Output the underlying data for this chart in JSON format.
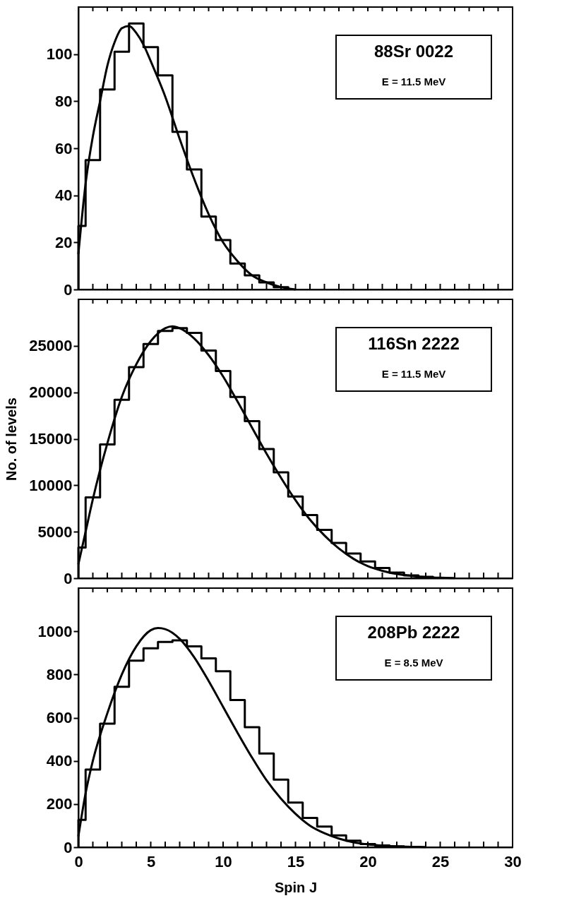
{
  "chart_data": [
    {
      "type": "histogram",
      "xlim": [
        0,
        30
      ],
      "ylim": [
        0,
        120
      ],
      "yticks": [
        0,
        20,
        40,
        60,
        80,
        100
      ],
      "tick_labels": "y",
      "xticks": [
        0,
        {
          "value": 1,
          "label": null
        },
        {
          "value": 2,
          "label": null
        },
        {
          "value": 3,
          "label": null
        },
        {
          "value": 4,
          "label": null
        },
        5,
        {
          "value": 6,
          "label": null
        },
        {
          "value": 7,
          "label": null
        },
        {
          "value": 8,
          "label": null
        },
        {
          "value": 9,
          "label": null
        },
        10,
        {
          "value": 11,
          "label": null
        },
        {
          "value": 12,
          "label": null
        },
        {
          "value": 13,
          "label": null
        },
        {
          "value": 14,
          "label": null
        },
        15,
        {
          "value": 16,
          "label": null
        },
        {
          "value": 17,
          "label": null
        },
        {
          "value": 18,
          "label": null
        },
        {
          "value": 19,
          "label": null
        },
        20,
        {
          "value": 21,
          "label": null
        },
        {
          "value": 22,
          "label": null
        },
        {
          "value": 23,
          "label": null
        },
        {
          "value": 24,
          "label": null
        },
        25,
        {
          "value": 26,
          "label": null
        },
        {
          "value": 27,
          "label": null
        },
        {
          "value": 28,
          "label": null
        },
        {
          "value": 29,
          "label": null
        },
        30
      ],
      "annotations": [
        "88Sr  0022",
        "E = 11.5 MeV"
      ],
      "series": [
        {
          "type": "histogram",
          "color": "#000000",
          "bins": [
            0,
            0.5,
            1.5,
            2.5,
            3.5,
            4.5,
            5.5,
            6.5,
            7.5,
            8.5,
            9.5,
            10.5,
            11.5,
            12.5,
            13.5,
            14.5
          ],
          "values": [
            27,
            55,
            85,
            101,
            113,
            103,
            91,
            67,
            51,
            31,
            21,
            11,
            6,
            3,
            1
          ]
        },
        {
          "type": "line",
          "color": "#000000",
          "x": [
            0,
            0.5,
            1,
            1.5,
            2,
            2.5,
            3,
            3.5,
            4,
            4.5,
            5,
            6,
            7,
            8,
            9,
            10,
            11,
            12,
            13,
            14,
            15
          ],
          "values": [
            15,
            45,
            65,
            80,
            95,
            105,
            111,
            112,
            109,
            104,
            97,
            82,
            64,
            47,
            32,
            20,
            12,
            6,
            3,
            1,
            0
          ]
        }
      ]
    },
    {
      "type": "histogram",
      "xlim": [
        0,
        30
      ],
      "ylim": [
        0,
        30000
      ],
      "yticks": [
        0,
        5000,
        10000,
        15000,
        20000,
        25000
      ],
      "tick_labels": "y",
      "ylabel": "No. of levels",
      "xticks": [
        0,
        {
          "value": 1,
          "label": null
        },
        {
          "value": 2,
          "label": null
        },
        {
          "value": 3,
          "label": null
        },
        {
          "value": 4,
          "label": null
        },
        5,
        {
          "value": 6,
          "label": null
        },
        {
          "value": 7,
          "label": null
        },
        {
          "value": 8,
          "label": null
        },
        {
          "value": 9,
          "label": null
        },
        10,
        {
          "value": 11,
          "label": null
        },
        {
          "value": 12,
          "label": null
        },
        {
          "value": 13,
          "label": null
        },
        {
          "value": 14,
          "label": null
        },
        15,
        {
          "value": 16,
          "label": null
        },
        {
          "value": 17,
          "label": null
        },
        {
          "value": 18,
          "label": null
        },
        {
          "value": 19,
          "label": null
        },
        20,
        {
          "value": 21,
          "label": null
        },
        {
          "value": 22,
          "label": null
        },
        {
          "value": 23,
          "label": null
        },
        {
          "value": 24,
          "label": null
        },
        25,
        {
          "value": 26,
          "label": null
        },
        {
          "value": 27,
          "label": null
        },
        {
          "value": 28,
          "label": null
        },
        {
          "value": 29,
          "label": null
        },
        30
      ],
      "annotations": [
        "116Sn  2222",
        "E = 11.5 MeV"
      ],
      "series": [
        {
          "type": "histogram",
          "color": "#000000",
          "bins": [
            0,
            0.5,
            1.5,
            2.5,
            3.5,
            4.5,
            5.5,
            6.5,
            7.5,
            8.5,
            9.5,
            10.5,
            11.5,
            12.5,
            13.5,
            14.5,
            15.5,
            16.5,
            17.5,
            18.5,
            19.5,
            20.5,
            21.5,
            22.5,
            23.5,
            24.5
          ],
          "values": [
            3300,
            8700,
            14400,
            19200,
            22700,
            25200,
            26600,
            26900,
            26400,
            24500,
            22300,
            19500,
            16900,
            13900,
            11400,
            8800,
            6800,
            5200,
            3800,
            2650,
            1800,
            1100,
            600,
            300,
            150
          ]
        },
        {
          "type": "line",
          "color": "#000000",
          "x": [
            0,
            0.5,
            1,
            2,
            3,
            4,
            5,
            6,
            6.5,
            7,
            8,
            9,
            10,
            11,
            12,
            13,
            14,
            15,
            16,
            17,
            18,
            19,
            20,
            21,
            22,
            23,
            24,
            25,
            26
          ],
          "values": [
            1500,
            5000,
            8500,
            14500,
            19500,
            23000,
            25500,
            26900,
            27100,
            26900,
            25800,
            24000,
            21700,
            19000,
            16200,
            13400,
            10800,
            8400,
            6300,
            4600,
            3200,
            2100,
            1300,
            800,
            450,
            250,
            120,
            50,
            20
          ]
        }
      ]
    },
    {
      "type": "histogram",
      "xlim": [
        0,
        30
      ],
      "ylim": [
        0,
        1200
      ],
      "yticks": [
        0,
        200,
        400,
        600,
        800,
        1000
      ],
      "xlabel": "Spin J",
      "xticks": [
        0,
        {
          "value": 1,
          "label": null
        },
        {
          "value": 2,
          "label": null
        },
        {
          "value": 3,
          "label": null
        },
        {
          "value": 4,
          "label": null
        },
        5,
        {
          "value": 6,
          "label": null
        },
        {
          "value": 7,
          "label": null
        },
        {
          "value": 8,
          "label": null
        },
        {
          "value": 9,
          "label": null
        },
        10,
        {
          "value": 11,
          "label": null
        },
        {
          "value": 12,
          "label": null
        },
        {
          "value": 13,
          "label": null
        },
        {
          "value": 14,
          "label": null
        },
        15,
        {
          "value": 16,
          "label": null
        },
        {
          "value": 17,
          "label": null
        },
        {
          "value": 18,
          "label": null
        },
        {
          "value": 19,
          "label": null
        },
        20,
        {
          "value": 21,
          "label": null
        },
        {
          "value": 22,
          "label": null
        },
        {
          "value": 23,
          "label": null
        },
        {
          "value": 24,
          "label": null
        },
        25,
        {
          "value": 26,
          "label": null
        },
        {
          "value": 27,
          "label": null
        },
        {
          "value": 28,
          "label": null
        },
        {
          "value": 29,
          "label": null
        },
        30
      ],
      "annotations": [
        "208Pb  2222",
        "E = 8.5 MeV"
      ],
      "series": [
        {
          "type": "histogram",
          "color": "#000000",
          "bins": [
            0,
            0.5,
            1.5,
            2.5,
            3.5,
            4.5,
            5.5,
            6.5,
            7.5,
            8.5,
            9.5,
            10.5,
            11.5,
            12.5,
            13.5,
            14.5,
            15.5,
            16.5,
            17.5,
            18.5,
            19.5,
            20.5,
            21.5,
            22.5
          ],
          "values": [
            127,
            360,
            572,
            743,
            864,
            921,
            951,
            958,
            930,
            875,
            815,
            682,
            556,
            434,
            313,
            207,
            136,
            96,
            55,
            30,
            15,
            8,
            4
          ]
        },
        {
          "type": "line",
          "color": "#000000",
          "x": [
            0,
            0.5,
            1,
            2,
            3,
            4,
            5,
            5.5,
            6,
            7,
            8,
            9,
            10,
            11,
            12,
            13,
            14,
            15,
            16,
            17,
            18,
            19,
            20,
            21,
            22,
            23,
            24
          ],
          "values": [
            50,
            250,
            400,
            620,
            800,
            930,
            1005,
            1015,
            1010,
            965,
            880,
            770,
            650,
            530,
            415,
            310,
            225,
            155,
            100,
            65,
            40,
            23,
            13,
            7,
            3,
            2,
            1
          ]
        }
      ]
    }
  ]
}
